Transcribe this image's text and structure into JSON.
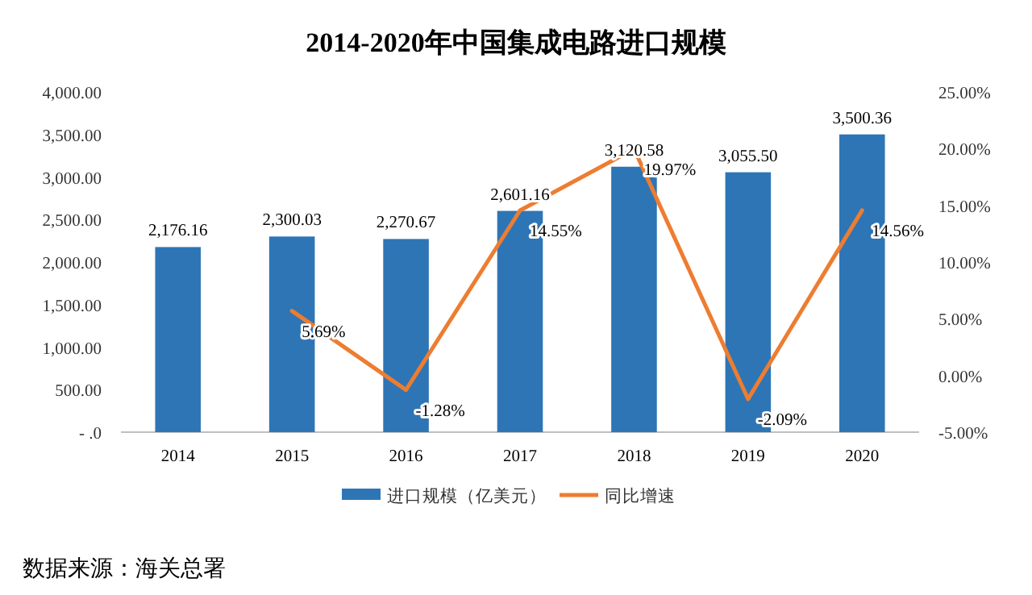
{
  "chart_data": {
    "type": "bar",
    "title": "2014-2020年中国集成电路进口规模",
    "categories": [
      "2014",
      "2015",
      "2016",
      "2017",
      "2018",
      "2019",
      "2020"
    ],
    "series": [
      {
        "name": "进口规模（亿美元）",
        "color": "#2e75b6",
        "values": [
          2176.16,
          2300.03,
          2270.67,
          2601.16,
          3120.58,
          3055.5,
          3500.36
        ],
        "value_labels": [
          "2,176.16",
          "2,300.03",
          "2,270.67",
          "2,601.16",
          "3,120.58",
          "3,055.50",
          "3,500.36"
        ]
      },
      {
        "name": "同比增速",
        "type": "line",
        "axis": "y2",
        "color": "#ed7d31",
        "values": [
          null,
          5.69,
          -1.28,
          14.55,
          19.97,
          -2.09,
          14.56
        ],
        "value_labels": [
          null,
          "5.69%",
          "-1.28%",
          "14.55%",
          "19.97%",
          "-2.09%",
          "14.56%"
        ]
      }
    ],
    "ylim": [
      0,
      4000
    ],
    "yticks": [
      {
        "value": 0,
        "label": "- .0"
      },
      {
        "value": 500,
        "label": "500.00"
      },
      {
        "value": 1000,
        "label": "1,000.00"
      },
      {
        "value": 1500,
        "label": "1,500.00"
      },
      {
        "value": 2000,
        "label": "2,000.00"
      },
      {
        "value": 2500,
        "label": "2,500.00"
      },
      {
        "value": 3000,
        "label": "3,000.00"
      },
      {
        "value": 3500,
        "label": "3,500.00"
      },
      {
        "value": 4000,
        "label": "4,000.00"
      }
    ],
    "y2lim": [
      -5,
      25
    ],
    "y2ticks": [
      {
        "value": -5,
        "label": "-5.00%"
      },
      {
        "value": 0,
        "label": "0.00%"
      },
      {
        "value": 5,
        "label": "5.00%"
      },
      {
        "value": 10,
        "label": "10.00%"
      },
      {
        "value": 15,
        "label": "15.00%"
      },
      {
        "value": 20,
        "label": "20.00%"
      },
      {
        "value": 25,
        "label": "25.00%"
      }
    ],
    "grid": false,
    "legend": "bottom",
    "annotations": [
      "数据来源：海关总署"
    ]
  }
}
